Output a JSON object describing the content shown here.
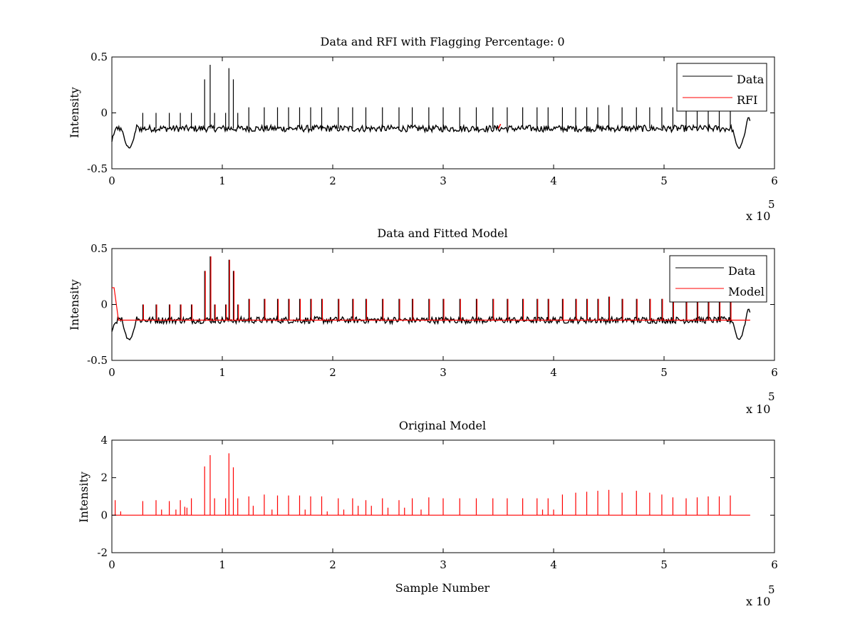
{
  "chart_data": [
    {
      "type": "line",
      "title": "Data and RFI with Flagging Percentage: 0",
      "xlabel": "",
      "ylabel": "Intensity",
      "xlim": [
        0,
        600000
      ],
      "ylim": [
        -0.5,
        0.5
      ],
      "xticks": [
        "0",
        "1",
        "2",
        "3",
        "4",
        "5",
        "6"
      ],
      "yticks": [
        "-0.5",
        "0",
        "0.5"
      ],
      "x_exponent": "x 10",
      "x_exponent_power": "5",
      "legend_position": "top-right",
      "baseline": -0.14,
      "spikes": [
        [
          28000,
          0.0
        ],
        [
          40000,
          0.0
        ],
        [
          52000,
          0.0
        ],
        [
          62000,
          0.0
        ],
        [
          72000,
          0.0
        ],
        [
          84000,
          0.3
        ],
        [
          89000,
          0.43
        ],
        [
          93000,
          0.0
        ],
        [
          103000,
          0.0
        ],
        [
          106000,
          0.4
        ],
        [
          110000,
          0.3
        ],
        [
          114000,
          0.0
        ],
        [
          124000,
          0.05
        ],
        [
          138000,
          0.05
        ],
        [
          150000,
          0.05
        ],
        [
          160000,
          0.05
        ],
        [
          170000,
          0.05
        ],
        [
          180000,
          0.05
        ],
        [
          190000,
          0.05
        ],
        [
          205000,
          0.05
        ],
        [
          218000,
          0.05
        ],
        [
          230000,
          0.05
        ],
        [
          245000,
          0.05
        ],
        [
          260000,
          0.05
        ],
        [
          272000,
          0.05
        ],
        [
          287000,
          0.05
        ],
        [
          300000,
          0.05
        ],
        [
          315000,
          0.05
        ],
        [
          330000,
          0.05
        ],
        [
          345000,
          0.05
        ],
        [
          358000,
          0.05
        ],
        [
          372000,
          0.05
        ],
        [
          385000,
          0.05
        ],
        [
          395000,
          0.05
        ],
        [
          408000,
          0.05
        ],
        [
          420000,
          0.05
        ],
        [
          430000,
          0.05
        ],
        [
          440000,
          0.05
        ],
        [
          450000,
          0.07
        ],
        [
          462000,
          0.05
        ],
        [
          475000,
          0.05
        ],
        [
          487000,
          0.05
        ],
        [
          498000,
          0.05
        ],
        [
          508000,
          0.05
        ],
        [
          520000,
          0.05
        ],
        [
          530000,
          0.05
        ],
        [
          540000,
          0.05
        ],
        [
          550000,
          0.05
        ],
        [
          560000,
          0.05
        ]
      ],
      "series": [
        {
          "name": "Data",
          "color": "#000000"
        },
        {
          "name": "RFI",
          "color": "#ff0000",
          "x": [
            350000,
            352000
          ],
          "y": [
            -0.14,
            -0.1
          ]
        }
      ]
    },
    {
      "type": "line",
      "title": "Data and Fitted Model",
      "xlabel": "",
      "ylabel": "Intensity",
      "xlim": [
        0,
        600000
      ],
      "ylim": [
        -0.5,
        0.5
      ],
      "xticks": [
        "0",
        "1",
        "2",
        "3",
        "4",
        "5",
        "6"
      ],
      "yticks": [
        "-0.5",
        "0",
        "0.5"
      ],
      "x_exponent": "x 10",
      "x_exponent_power": "5",
      "legend_position": "top-right",
      "baseline": -0.14,
      "spikes": [
        [
          28000,
          0.0
        ],
        [
          40000,
          0.0
        ],
        [
          52000,
          0.0
        ],
        [
          62000,
          0.0
        ],
        [
          72000,
          0.0
        ],
        [
          84000,
          0.3
        ],
        [
          89000,
          0.43
        ],
        [
          93000,
          0.0
        ],
        [
          103000,
          0.0
        ],
        [
          106000,
          0.4
        ],
        [
          110000,
          0.3
        ],
        [
          114000,
          0.0
        ],
        [
          124000,
          0.05
        ],
        [
          138000,
          0.05
        ],
        [
          150000,
          0.05
        ],
        [
          160000,
          0.05
        ],
        [
          170000,
          0.05
        ],
        [
          180000,
          0.05
        ],
        [
          190000,
          0.05
        ],
        [
          205000,
          0.05
        ],
        [
          218000,
          0.05
        ],
        [
          230000,
          0.05
        ],
        [
          245000,
          0.05
        ],
        [
          260000,
          0.05
        ],
        [
          272000,
          0.05
        ],
        [
          287000,
          0.05
        ],
        [
          300000,
          0.05
        ],
        [
          315000,
          0.05
        ],
        [
          330000,
          0.05
        ],
        [
          345000,
          0.05
        ],
        [
          358000,
          0.05
        ],
        [
          372000,
          0.05
        ],
        [
          385000,
          0.05
        ],
        [
          395000,
          0.05
        ],
        [
          408000,
          0.05
        ],
        [
          420000,
          0.05
        ],
        [
          430000,
          0.05
        ],
        [
          440000,
          0.05
        ],
        [
          450000,
          0.07
        ],
        [
          462000,
          0.05
        ],
        [
          475000,
          0.05
        ],
        [
          487000,
          0.05
        ],
        [
          498000,
          0.05
        ],
        [
          508000,
          0.05
        ],
        [
          520000,
          0.05
        ],
        [
          530000,
          0.05
        ],
        [
          540000,
          0.05
        ],
        [
          550000,
          0.05
        ],
        [
          560000,
          0.05
        ]
      ],
      "series": [
        {
          "name": "Data",
          "color": "#000000"
        },
        {
          "name": "Model",
          "color": "#ff0000"
        }
      ]
    },
    {
      "type": "line",
      "title": "Original Model",
      "xlabel": "Sample Number",
      "ylabel": "Intensity",
      "xlim": [
        0,
        600000
      ],
      "ylim": [
        -2,
        4
      ],
      "xticks": [
        "0",
        "1",
        "2",
        "3",
        "4",
        "5",
        "6"
      ],
      "yticks": [
        "-2",
        "0",
        "2",
        "4"
      ],
      "x_exponent": "x 10",
      "x_exponent_power": "5",
      "baseline": 0,
      "spikes": [
        [
          3000,
          0.8
        ],
        [
          8000,
          0.2
        ],
        [
          28000,
          0.75
        ],
        [
          40000,
          0.8
        ],
        [
          45000,
          0.3
        ],
        [
          52000,
          0.75
        ],
        [
          58000,
          0.3
        ],
        [
          62000,
          0.8
        ],
        [
          66000,
          0.45
        ],
        [
          68000,
          0.4
        ],
        [
          72000,
          0.9
        ],
        [
          84000,
          2.6
        ],
        [
          89000,
          3.2
        ],
        [
          93000,
          0.9
        ],
        [
          103000,
          0.9
        ],
        [
          106000,
          3.3
        ],
        [
          110000,
          2.55
        ],
        [
          114000,
          0.9
        ],
        [
          124000,
          1.0
        ],
        [
          128000,
          0.5
        ],
        [
          138000,
          1.1
        ],
        [
          145000,
          0.3
        ],
        [
          150000,
          1.05
        ],
        [
          160000,
          1.05
        ],
        [
          170000,
          1.05
        ],
        [
          175000,
          0.3
        ],
        [
          180000,
          1.0
        ],
        [
          190000,
          1.0
        ],
        [
          195000,
          0.2
        ],
        [
          205000,
          0.9
        ],
        [
          210000,
          0.3
        ],
        [
          218000,
          0.9
        ],
        [
          223000,
          0.5
        ],
        [
          230000,
          0.8
        ],
        [
          235000,
          0.5
        ],
        [
          245000,
          0.9
        ],
        [
          250000,
          0.4
        ],
        [
          260000,
          0.8
        ],
        [
          265000,
          0.4
        ],
        [
          272000,
          0.9
        ],
        [
          280000,
          0.3
        ],
        [
          287000,
          0.95
        ],
        [
          300000,
          0.9
        ],
        [
          315000,
          0.9
        ],
        [
          330000,
          0.9
        ],
        [
          345000,
          0.9
        ],
        [
          358000,
          0.9
        ],
        [
          372000,
          0.9
        ],
        [
          385000,
          0.9
        ],
        [
          390000,
          0.3
        ],
        [
          395000,
          0.9
        ],
        [
          400000,
          0.3
        ],
        [
          408000,
          1.1
        ],
        [
          420000,
          1.2
        ],
        [
          430000,
          1.25
        ],
        [
          440000,
          1.3
        ],
        [
          450000,
          1.35
        ],
        [
          462000,
          1.2
        ],
        [
          475000,
          1.3
        ],
        [
          487000,
          1.2
        ],
        [
          498000,
          1.1
        ],
        [
          508000,
          0.95
        ],
        [
          520000,
          0.9
        ],
        [
          530000,
          0.95
        ],
        [
          540000,
          1.0
        ],
        [
          550000,
          1.0
        ],
        [
          560000,
          1.05
        ],
        [
          578000,
          0
        ]
      ],
      "series": [
        {
          "name": "",
          "color": "#ff0000"
        }
      ]
    }
  ]
}
